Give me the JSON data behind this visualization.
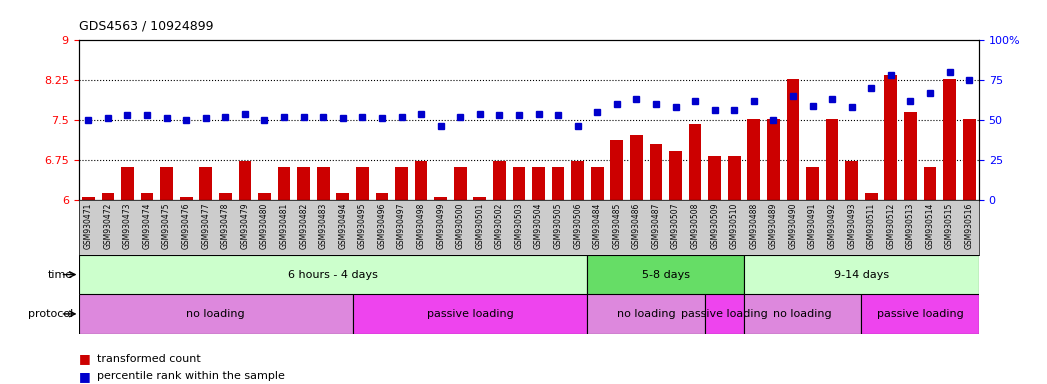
{
  "title": "GDS4563 / 10924899",
  "samples": [
    "GSM930471",
    "GSM930472",
    "GSM930473",
    "GSM930474",
    "GSM930475",
    "GSM930476",
    "GSM930477",
    "GSM930478",
    "GSM930479",
    "GSM930480",
    "GSM930481",
    "GSM930482",
    "GSM930483",
    "GSM930494",
    "GSM930495",
    "GSM930496",
    "GSM930497",
    "GSM930498",
    "GSM930499",
    "GSM930500",
    "GSM930501",
    "GSM930502",
    "GSM930503",
    "GSM930504",
    "GSM930505",
    "GSM930506",
    "GSM930484",
    "GSM930485",
    "GSM930486",
    "GSM930487",
    "GSM930507",
    "GSM930508",
    "GSM930509",
    "GSM930510",
    "GSM930488",
    "GSM930489",
    "GSM930490",
    "GSM930491",
    "GSM930492",
    "GSM930493",
    "GSM930511",
    "GSM930512",
    "GSM930513",
    "GSM930514",
    "GSM930515",
    "GSM930516"
  ],
  "bar_values": [
    6.05,
    6.12,
    6.62,
    6.12,
    6.62,
    6.05,
    6.62,
    6.12,
    6.72,
    6.12,
    6.62,
    6.62,
    6.62,
    6.12,
    6.62,
    6.12,
    6.62,
    6.72,
    6.05,
    6.62,
    6.05,
    6.72,
    6.62,
    6.62,
    6.62,
    6.72,
    6.62,
    7.12,
    7.22,
    7.05,
    6.92,
    7.42,
    6.82,
    6.82,
    7.52,
    7.52,
    8.28,
    6.62,
    7.52,
    6.72,
    6.12,
    8.35,
    7.65,
    6.62,
    8.28,
    7.52
  ],
  "percentile_values": [
    50,
    51,
    53,
    53,
    51,
    50,
    51,
    52,
    54,
    50,
    52,
    52,
    52,
    51,
    52,
    51,
    52,
    54,
    46,
    52,
    54,
    53,
    53,
    54,
    53,
    46,
    55,
    60,
    63,
    60,
    58,
    62,
    56,
    56,
    62,
    50,
    65,
    59,
    63,
    58,
    70,
    78,
    62,
    67,
    80,
    75
  ],
  "ylim_left": [
    6.0,
    9.0
  ],
  "ylim_right": [
    0,
    100
  ],
  "yticks_left": [
    6.0,
    6.75,
    7.5,
    8.25,
    9.0
  ],
  "ytick_labels_left": [
    "6",
    "6.75",
    "7.5",
    "8.25",
    "9"
  ],
  "yticks_right": [
    0,
    25,
    50,
    75,
    100
  ],
  "ytick_labels_right": [
    "0",
    "25",
    "50",
    "75",
    "100%"
  ],
  "hlines": [
    6.75,
    7.5,
    8.25
  ],
  "bar_color": "#cc0000",
  "dot_color": "#0000cc",
  "bar_bottom": 6.0,
  "time_groups": [
    {
      "label": "6 hours - 4 days",
      "start": 0,
      "end": 26,
      "color": "#ccffcc"
    },
    {
      "label": "5-8 days",
      "start": 26,
      "end": 34,
      "color": "#66dd66"
    },
    {
      "label": "9-14 days",
      "start": 34,
      "end": 46,
      "color": "#ccffcc"
    }
  ],
  "protocol_groups": [
    {
      "label": "no loading",
      "start": 0,
      "end": 14,
      "color": "#dd88dd"
    },
    {
      "label": "passive loading",
      "start": 14,
      "end": 26,
      "color": "#ee44ee"
    },
    {
      "label": "no loading",
      "start": 26,
      "end": 32,
      "color": "#dd88dd"
    },
    {
      "label": "passive loading",
      "start": 32,
      "end": 34,
      "color": "#ee44ee"
    },
    {
      "label": "no loading",
      "start": 34,
      "end": 40,
      "color": "#dd88dd"
    },
    {
      "label": "passive loading",
      "start": 40,
      "end": 46,
      "color": "#ee44ee"
    }
  ],
  "legend_items": [
    {
      "label": "transformed count",
      "color": "#cc0000"
    },
    {
      "label": "percentile rank within the sample",
      "color": "#0000cc"
    }
  ],
  "bg_color": "#ffffff",
  "plot_bg_color": "#ffffff",
  "tick_area_color": "#cccccc"
}
